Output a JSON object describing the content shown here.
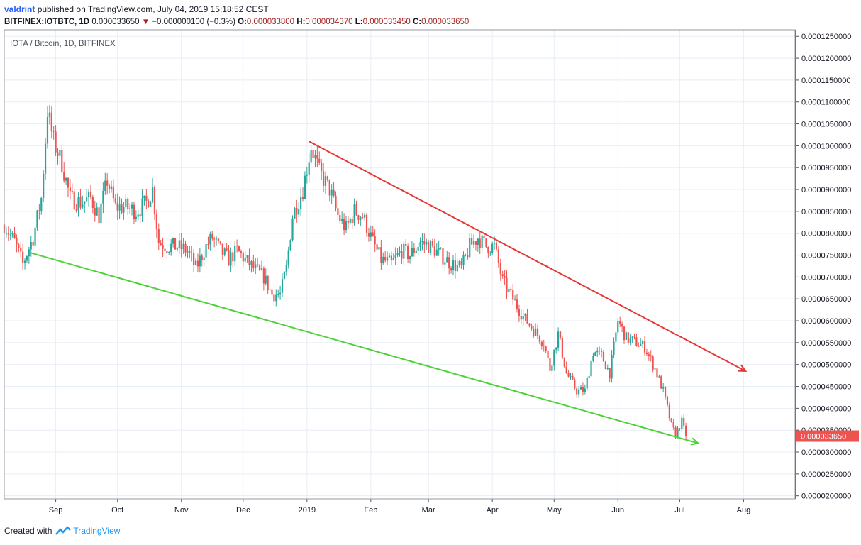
{
  "header": {
    "user": "valdrint",
    "published_text": "published on TradingView.com, July 04, 2019 15:18:52 CEST",
    "symbol": "BITFINEX:IOTBTC, 1D",
    "last": "0.000033650",
    "change_arrow": "▼",
    "change": "−0.000000100 (−0.3%)",
    "o_label": "O:",
    "o_value": "0.000033800",
    "h_label": "H:",
    "h_value": "0.000034370",
    "l_label": "L:",
    "l_value": "0.000033450",
    "c_label": "C:",
    "c_value": "0.000033650"
  },
  "footer": {
    "created_with": "Created with",
    "brand": "TradingView"
  },
  "colors": {
    "up": "#26a69a",
    "down": "#ef5350",
    "resistance": "#e53935",
    "support": "#4cd137",
    "price_label": "#ef5350",
    "grid": "#e8eef6"
  },
  "chart_data": {
    "type": "candlestick",
    "title": "IOTA / Bitcoin, 1D, BITFINEX",
    "x_ticks": [
      "Sep",
      "Oct",
      "Nov",
      "Dec",
      "2019",
      "Feb",
      "Mar",
      "Apr",
      "May",
      "Jun",
      "Jul",
      "Aug"
    ],
    "y_ticks": [
      "0.0001250000",
      "0.0001200000",
      "0.0001150000",
      "0.0001100000",
      "0.0001050000",
      "0.0001000000",
      "0.0000950000",
      "0.0000900000",
      "0.0000850000",
      "0.0000800000",
      "0.0000750000",
      "0.0000700000",
      "0.0000650000",
      "0.0000600000",
      "0.0000550000",
      "0.0000500000",
      "0.0000450000",
      "0.0000400000",
      "0.0000350000",
      "0.0000300000",
      "0.0000250000",
      "0.0000200000"
    ],
    "y_range": [
      1.93e-05,
      0.0001265
    ],
    "x_range": [
      "2018-08-07",
      "2019-08-26"
    ],
    "current_price_label": "0.000033650",
    "closes": [
      [
        "2018-08-07",
        8.2e-05
      ],
      [
        "2018-08-12",
        7.8e-05
      ],
      [
        "2018-08-16",
        7.3e-05
      ],
      [
        "2018-08-21",
        7.9e-05
      ],
      [
        "2018-08-25",
        8.8e-05
      ],
      [
        "2018-08-28",
        0.000108
      ],
      [
        "2018-08-31",
        0.000101
      ],
      [
        "2018-09-04",
        9.6e-05
      ],
      [
        "2018-09-08",
        8.8e-05
      ],
      [
        "2018-09-13",
        8.7e-05
      ],
      [
        "2018-09-18",
        8.8e-05
      ],
      [
        "2018-09-22",
        8.4e-05
      ],
      [
        "2018-09-26",
        9.2e-05
      ],
      [
        "2018-09-30",
        8.6e-05
      ],
      [
        "2018-10-05",
        8.6e-05
      ],
      [
        "2018-10-10",
        8.5e-05
      ],
      [
        "2018-10-15",
        8.7e-05
      ],
      [
        "2018-10-18",
        9e-05
      ],
      [
        "2018-10-21",
        7.8e-05
      ],
      [
        "2018-10-25",
        7.7e-05
      ],
      [
        "2018-10-30",
        7.7e-05
      ],
      [
        "2018-11-04",
        7.6e-05
      ],
      [
        "2018-11-08",
        7.2e-05
      ],
      [
        "2018-11-13",
        7.7e-05
      ],
      [
        "2018-11-16",
        7.9e-05
      ],
      [
        "2018-11-20",
        7.6e-05
      ],
      [
        "2018-11-24",
        7.4e-05
      ],
      [
        "2018-11-28",
        7.6e-05
      ],
      [
        "2018-12-02",
        7.4e-05
      ],
      [
        "2018-12-06",
        7.2e-05
      ],
      [
        "2018-12-11",
        7e-05
      ],
      [
        "2018-12-15",
        6.6e-05
      ],
      [
        "2018-12-19",
        6.6e-05
      ],
      [
        "2018-12-22",
        7.2e-05
      ],
      [
        "2018-12-25",
        8.4e-05
      ],
      [
        "2018-12-30",
        9e-05
      ],
      [
        "2019-01-03",
        0.0001
      ],
      [
        "2019-01-07",
        9.4e-05
      ],
      [
        "2019-01-12",
        9e-05
      ],
      [
        "2019-01-16",
        8.4e-05
      ],
      [
        "2019-01-20",
        8.1e-05
      ],
      [
        "2019-01-24",
        8.5e-05
      ],
      [
        "2019-01-28",
        8.4e-05
      ],
      [
        "2019-02-02",
        7.8e-05
      ],
      [
        "2019-02-06",
        7.4e-05
      ],
      [
        "2019-02-11",
        7.3e-05
      ],
      [
        "2019-02-16",
        7.6e-05
      ],
      [
        "2019-02-20",
        7.5e-05
      ],
      [
        "2019-02-25",
        7.8e-05
      ],
      [
        "2019-03-02",
        7.7e-05
      ],
      [
        "2019-03-07",
        7.5e-05
      ],
      [
        "2019-03-12",
        7.3e-05
      ],
      [
        "2019-03-17",
        7.2e-05
      ],
      [
        "2019-03-21",
        7.7e-05
      ],
      [
        "2019-03-25",
        7.9e-05
      ],
      [
        "2019-03-29",
        7.7e-05
      ],
      [
        "2019-04-02",
        7.7e-05
      ],
      [
        "2019-04-06",
        6.9e-05
      ],
      [
        "2019-04-11",
        6.5e-05
      ],
      [
        "2019-04-16",
        6.1e-05
      ],
      [
        "2019-04-21",
        5.8e-05
      ],
      [
        "2019-04-26",
        5.5e-05
      ],
      [
        "2019-04-29",
        4.9e-05
      ],
      [
        "2019-05-03",
        5.7e-05
      ],
      [
        "2019-05-07",
        4.8e-05
      ],
      [
        "2019-05-12",
        4.4e-05
      ],
      [
        "2019-05-16",
        4.4e-05
      ],
      [
        "2019-05-20",
        5.3e-05
      ],
      [
        "2019-05-24",
        5.2e-05
      ],
      [
        "2019-05-28",
        4.8e-05
      ],
      [
        "2019-06-01",
        6e-05
      ],
      [
        "2019-06-05",
        5.6e-05
      ],
      [
        "2019-06-10",
        5.5e-05
      ],
      [
        "2019-06-14",
        5.4e-05
      ],
      [
        "2019-06-19",
        4.9e-05
      ],
      [
        "2019-06-23",
        4.4e-05
      ],
      [
        "2019-06-27",
        3.6e-05
      ],
      [
        "2019-06-29",
        3.4e-05
      ],
      [
        "2019-07-02",
        3.7e-05
      ],
      [
        "2019-07-04",
        3.365e-05
      ]
    ],
    "trendlines": [
      {
        "role": "resistance",
        "from": [
          "2019-01-02",
          0.000101
        ],
        "to": [
          "2019-08-02",
          4.85e-05
        ],
        "arrow": true
      },
      {
        "role": "support",
        "from": [
          "2018-08-20",
          7.55e-05
        ],
        "to": [
          "2019-07-10",
          3.2e-05
        ],
        "arrow": true
      }
    ]
  }
}
